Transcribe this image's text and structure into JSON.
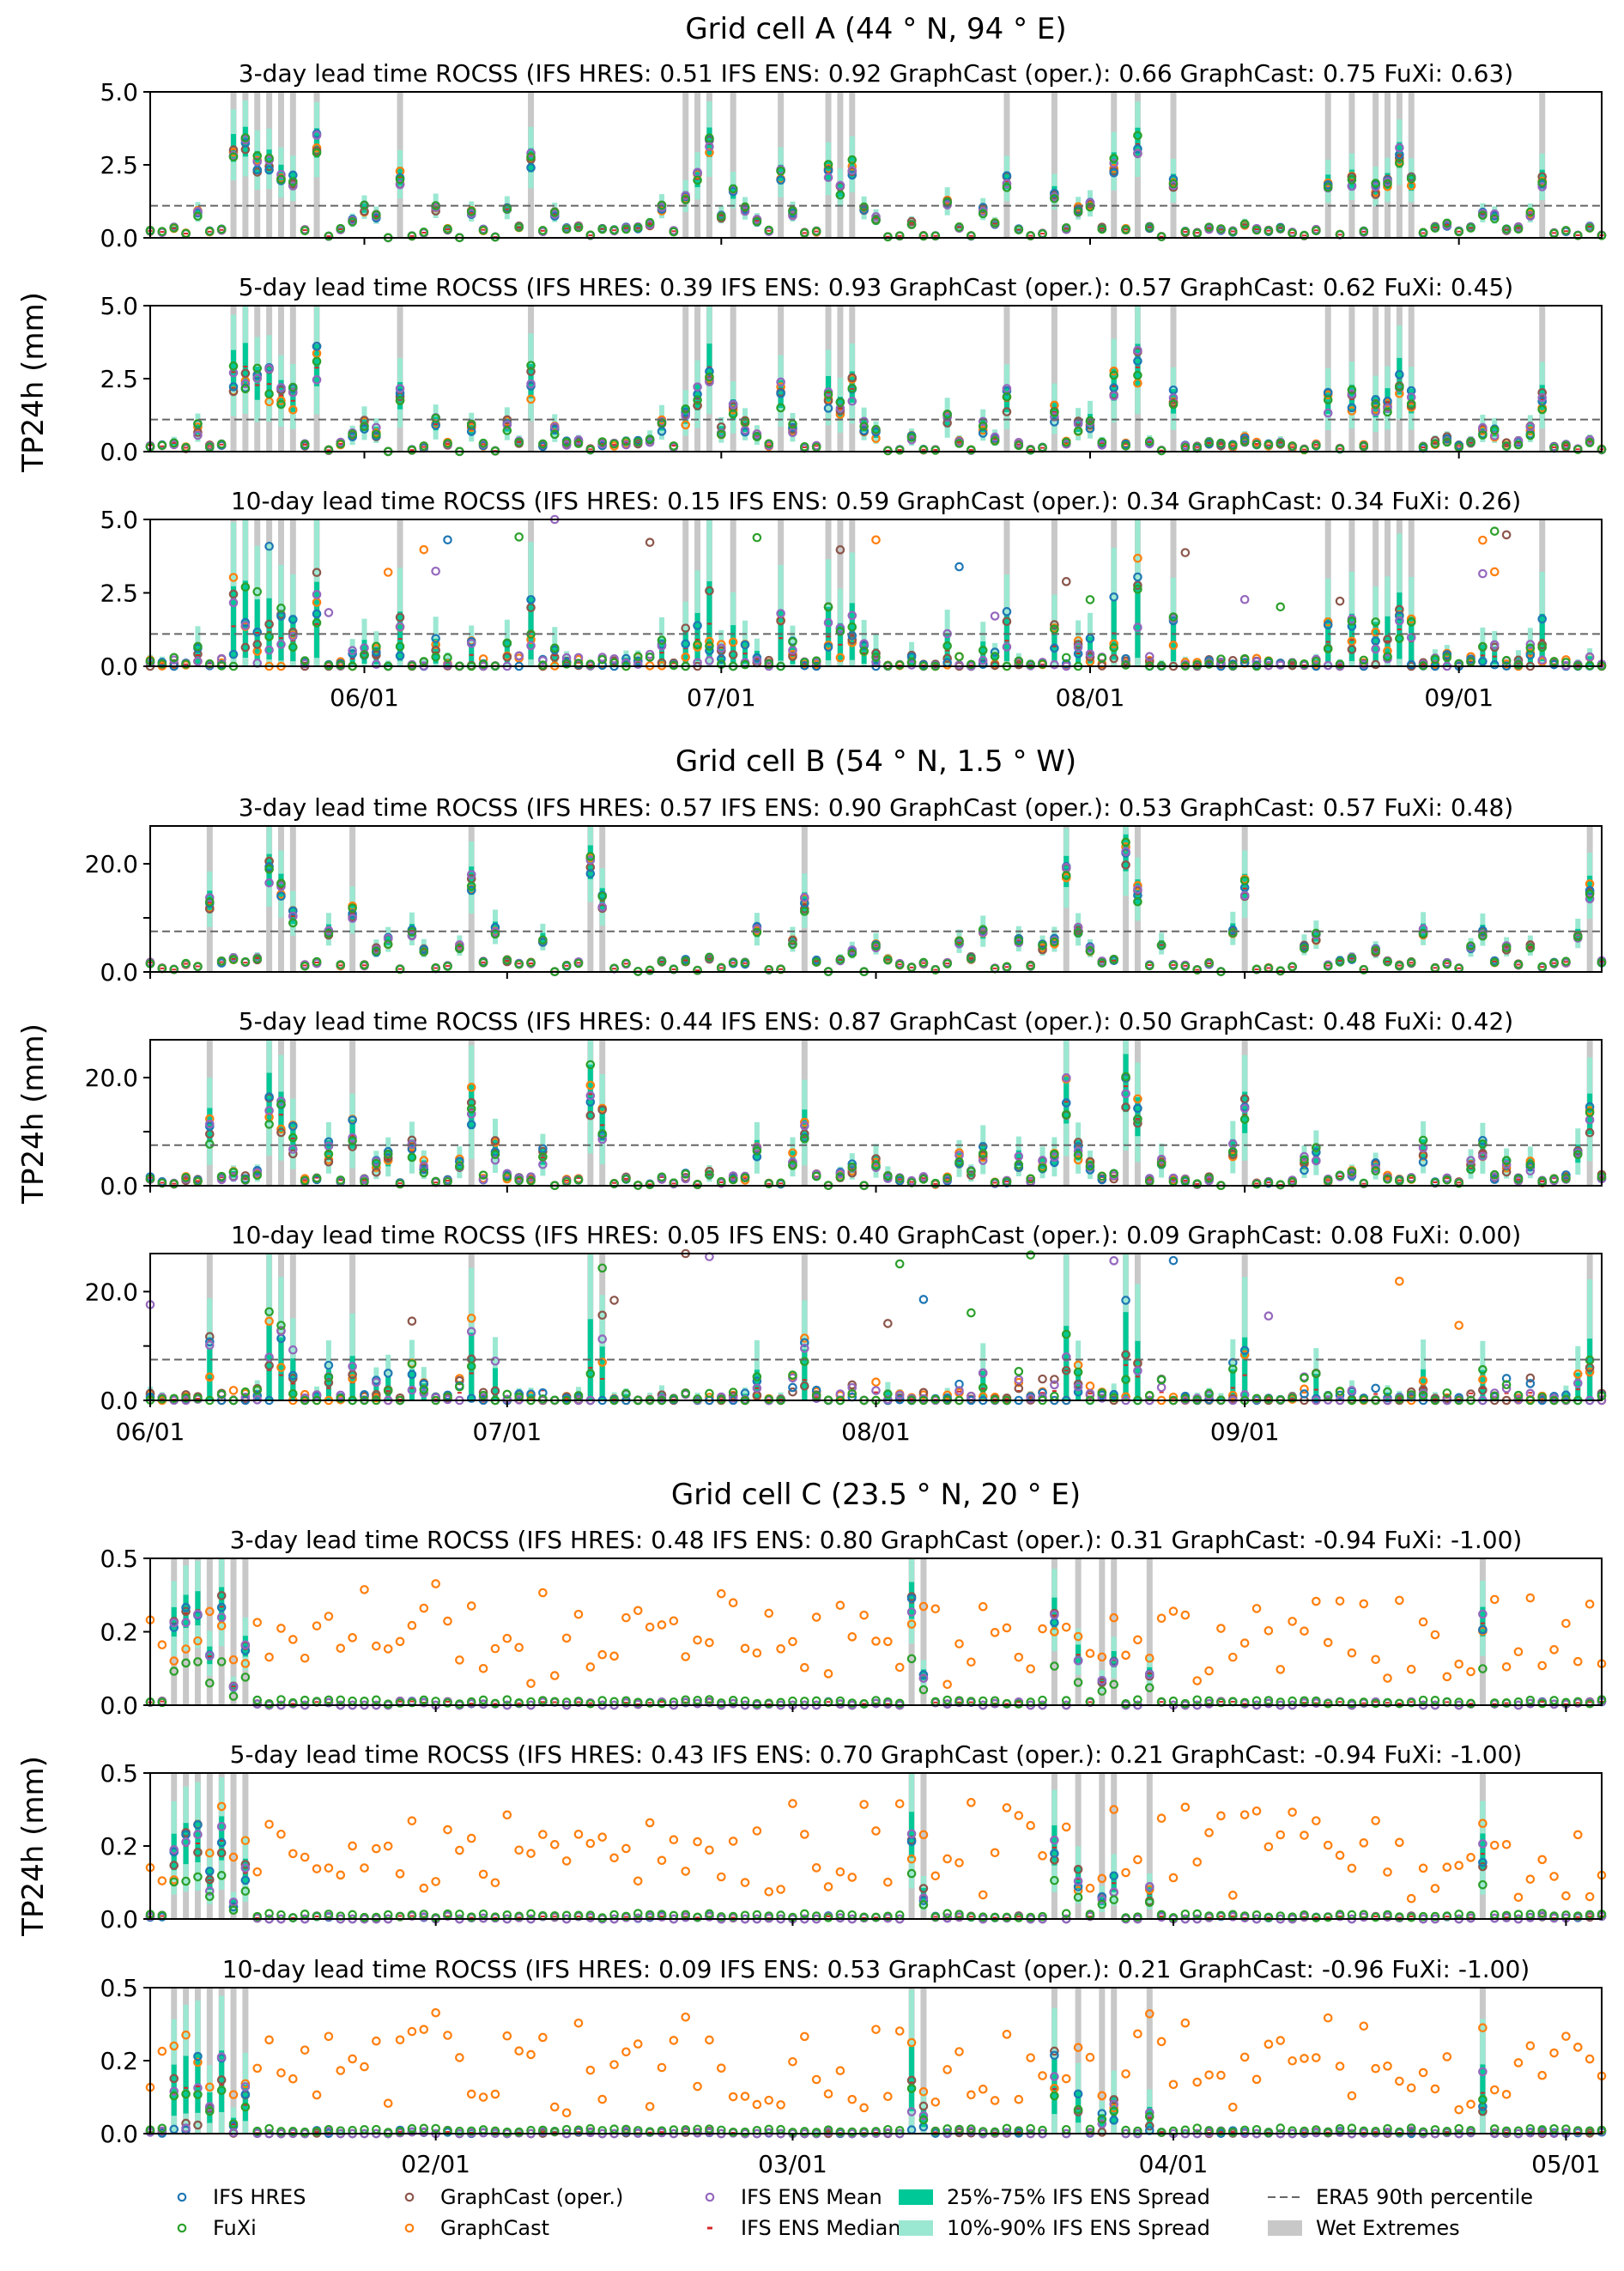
{
  "legend": [
    {
      "key": "hres",
      "label": "IFS HRES",
      "kind": "marker",
      "color": "#1f77b4"
    },
    {
      "key": "fuxi",
      "label": "FuXi",
      "kind": "marker",
      "color": "#2ca02c"
    },
    {
      "key": "gco",
      "label": "GraphCast (oper.)",
      "kind": "marker",
      "color": "#8c564b"
    },
    {
      "key": "gc",
      "label": "GraphCast",
      "kind": "marker",
      "color": "#ff7f0e"
    },
    {
      "key": "ensmean",
      "label": "IFS ENS Mean",
      "kind": "marker",
      "color": "#9467bd"
    },
    {
      "key": "ensmed",
      "label": "IFS ENS Median",
      "kind": "dash",
      "color": "#d62728"
    },
    {
      "key": "spread25",
      "label": "25%-75% IFS ENS Spread",
      "kind": "patch",
      "color": "#00c896"
    },
    {
      "key": "spread10",
      "label": "10%-90% IFS ENS Spread",
      "kind": "patch",
      "color": "#9be8d2"
    },
    {
      "key": "p90",
      "label": "ERA5 90th percentile",
      "kind": "dashline",
      "color": "#666666"
    },
    {
      "key": "wet",
      "label": "Wet Extremes",
      "kind": "patch",
      "color": "#c8c8c8"
    }
  ],
  "ylabel": "TP24h (mm)",
  "chart_data": [
    {
      "type": "scatter",
      "title": "Grid cell A (44$^\\circ$N, 94$^\\circ$E)",
      "title_display": "Grid cell A (44 ° N, 94 ° E)",
      "ylabel": "TP24h (mm)",
      "ylim": [
        0,
        5.0
      ],
      "yticks": [
        "0.0",
        "2.5",
        "5.0"
      ],
      "xlim_days": [
        0,
        122
      ],
      "xticks": [
        {
          "label": "06/01",
          "day": 18
        },
        {
          "label": "07/01",
          "day": 48
        },
        {
          "label": "08/01",
          "day": 79
        },
        {
          "label": "09/01",
          "day": 110
        }
      ],
      "threshold": 1.1,
      "panels": [
        {
          "lead": "3-day",
          "subtitle": "3-day lead time  ROCSS (IFS HRES: 0.51  IFS ENS: 0.92  GraphCast (oper.): 0.66  GraphCast: 0.75  FuXi: 0.63)",
          "ROCSS": {
            "IFS HRES": 0.51,
            "IFS ENS": 0.92,
            "GraphCast (oper.)": 0.66,
            "GraphCast": 0.75,
            "FuXi": 0.63
          },
          "scale": 1.0,
          "noise": 0.15,
          "spreadfrac": 0.35
        },
        {
          "lead": "5-day",
          "subtitle": "5-day lead time  ROCSS (IFS HRES: 0.39  IFS ENS: 0.93  GraphCast (oper.): 0.57  GraphCast: 0.62  FuXi: 0.45)",
          "ROCSS": {
            "IFS HRES": 0.39,
            "IFS ENS": 0.93,
            "GraphCast (oper.)": 0.57,
            "GraphCast": 0.62,
            "FuXi": 0.45
          },
          "scale": 0.9,
          "noise": 0.3,
          "spreadfrac": 0.5
        },
        {
          "lead": "10-day",
          "subtitle": "10-day lead time  ROCSS (IFS HRES: 0.15  IFS ENS: 0.59  GraphCast (oper.): 0.34  GraphCast: 0.34  FuXi: 0.26)",
          "ROCSS": {
            "IFS HRES": 0.15,
            "IFS ENS": 0.59,
            "GraphCast (oper.)": 0.34,
            "GraphCast": 0.34,
            "FuXi": 0.26
          },
          "scale": 0.45,
          "noise": 0.7,
          "spreadfrac": 0.9
        }
      ],
      "wet_days": [
        7,
        8,
        9,
        10,
        11,
        12,
        14,
        21,
        32,
        45,
        46,
        47,
        49,
        53,
        57,
        58,
        59,
        72,
        76,
        81,
        83,
        86,
        99,
        101,
        103,
        104,
        105,
        106,
        117
      ]
    },
    {
      "type": "scatter",
      "title": "Grid cell B (54$^\\circ$N, 1.5$^\\circ$W)",
      "title_display": "Grid cell B (54 ° N, 1.5 ° W)",
      "ylabel": "TP24h (mm)",
      "ylim": [
        0,
        27
      ],
      "yticks": [
        "0.0",
        "",
        "20.0"
      ],
      "ytick_values": [
        0,
        10,
        20
      ],
      "xlim_days": [
        0,
        122
      ],
      "xticks": [
        {
          "label": "06/01",
          "day": 0
        },
        {
          "label": "07/01",
          "day": 30
        },
        {
          "label": "08/01",
          "day": 61
        },
        {
          "label": "09/01",
          "day": 92
        }
      ],
      "threshold": 7.5,
      "panels": [
        {
          "lead": "3-day",
          "subtitle": "3-day lead time  ROCSS (IFS HRES: 0.57  IFS ENS: 0.90  GraphCast (oper.): 0.53  GraphCast: 0.57  FuXi: 0.48)",
          "ROCSS": {
            "IFS HRES": 0.57,
            "IFS ENS": 0.9,
            "GraphCast (oper.)": 0.53,
            "GraphCast": 0.57,
            "FuXi": 0.48
          },
          "scale": 1.0,
          "noise": 0.15,
          "spreadfrac": 0.35
        },
        {
          "lead": "5-day",
          "subtitle": "5-day lead time  ROCSS (IFS HRES: 0.44  IFS ENS: 0.87  GraphCast (oper.): 0.50  GraphCast: 0.48  FuXi: 0.42)",
          "ROCSS": {
            "IFS HRES": 0.44,
            "IFS ENS": 0.87,
            "GraphCast (oper.)": 0.5,
            "GraphCast": 0.48,
            "FuXi": 0.42
          },
          "scale": 0.85,
          "noise": 0.35,
          "spreadfrac": 0.55
        },
        {
          "lead": "10-day",
          "subtitle": "10-day lead time  ROCSS (IFS HRES: 0.05  IFS ENS: 0.40  GraphCast (oper.): 0.09  GraphCast: 0.08  FuXi: 0.00)",
          "ROCSS": {
            "IFS HRES": 0.05,
            "IFS ENS": 0.4,
            "GraphCast (oper.)": 0.09,
            "GraphCast": 0.08,
            "FuXi": 0.0
          },
          "scale": 0.3,
          "noise": 0.8,
          "spreadfrac": 0.9
        }
      ],
      "wet_days": [
        5,
        10,
        11,
        12,
        17,
        27,
        37,
        38,
        55,
        77,
        82,
        83,
        92,
        121
      ]
    },
    {
      "type": "scatter",
      "title": "Grid cell C (23.5$^\\circ$N, 20$^\\circ$E)",
      "title_display": "Grid cell C (23.5 ° N, 20 ° E)",
      "ylabel": "TP24h (mm)",
      "ylim": [
        0,
        0.5
      ],
      "yticks": [
        "0.0",
        "0.2",
        "0.5"
      ],
      "ytick_values": [
        0,
        0.25,
        0.5
      ],
      "xlim_days": [
        0,
        122
      ],
      "xticks": [
        {
          "label": "02/01",
          "day": 24
        },
        {
          "label": "03/01",
          "day": 54
        },
        {
          "label": "04/01",
          "day": 86
        },
        {
          "label": "05/01",
          "day": 119
        }
      ],
      "threshold": null,
      "panels": [
        {
          "lead": "3-day",
          "subtitle": "3-day lead time  ROCSS (IFS HRES: 0.48  IFS ENS: 0.80  GraphCast (oper.): 0.31  GraphCast: -0.94  FuXi: -1.00)",
          "ROCSS": {
            "IFS HRES": 0.48,
            "IFS ENS": 0.8,
            "GraphCast (oper.)": 0.31,
            "GraphCast": -0.94,
            "FuXi": -1.0
          },
          "scale": 1.0,
          "noise": 0.15,
          "spreadfrac": 0.4
        },
        {
          "lead": "5-day",
          "subtitle": "5-day lead time  ROCSS (IFS HRES: 0.43  IFS ENS: 0.70  GraphCast (oper.): 0.21  GraphCast: -0.94  FuXi: -1.00)",
          "ROCSS": {
            "IFS HRES": 0.43,
            "IFS ENS": 0.7,
            "GraphCast (oper.)": 0.21,
            "GraphCast": -0.94,
            "FuXi": -1.0
          },
          "scale": 0.8,
          "noise": 0.3,
          "spreadfrac": 0.5
        },
        {
          "lead": "10-day",
          "subtitle": "10-day lead time  ROCSS (IFS HRES: 0.09  IFS ENS: 0.53  GraphCast (oper.): 0.21  GraphCast: -0.96  FuXi: -1.00)",
          "ROCSS": {
            "IFS HRES": 0.09,
            "IFS ENS": 0.53,
            "GraphCast (oper.)": 0.21,
            "GraphCast": -0.96,
            "FuXi": -1.0
          },
          "scale": 0.5,
          "noise": 0.6,
          "spreadfrac": 0.7
        }
      ],
      "wet_days": [
        2,
        3,
        4,
        5,
        6,
        7,
        8,
        64,
        65,
        76,
        78,
        80,
        81,
        84,
        112
      ]
    }
  ]
}
